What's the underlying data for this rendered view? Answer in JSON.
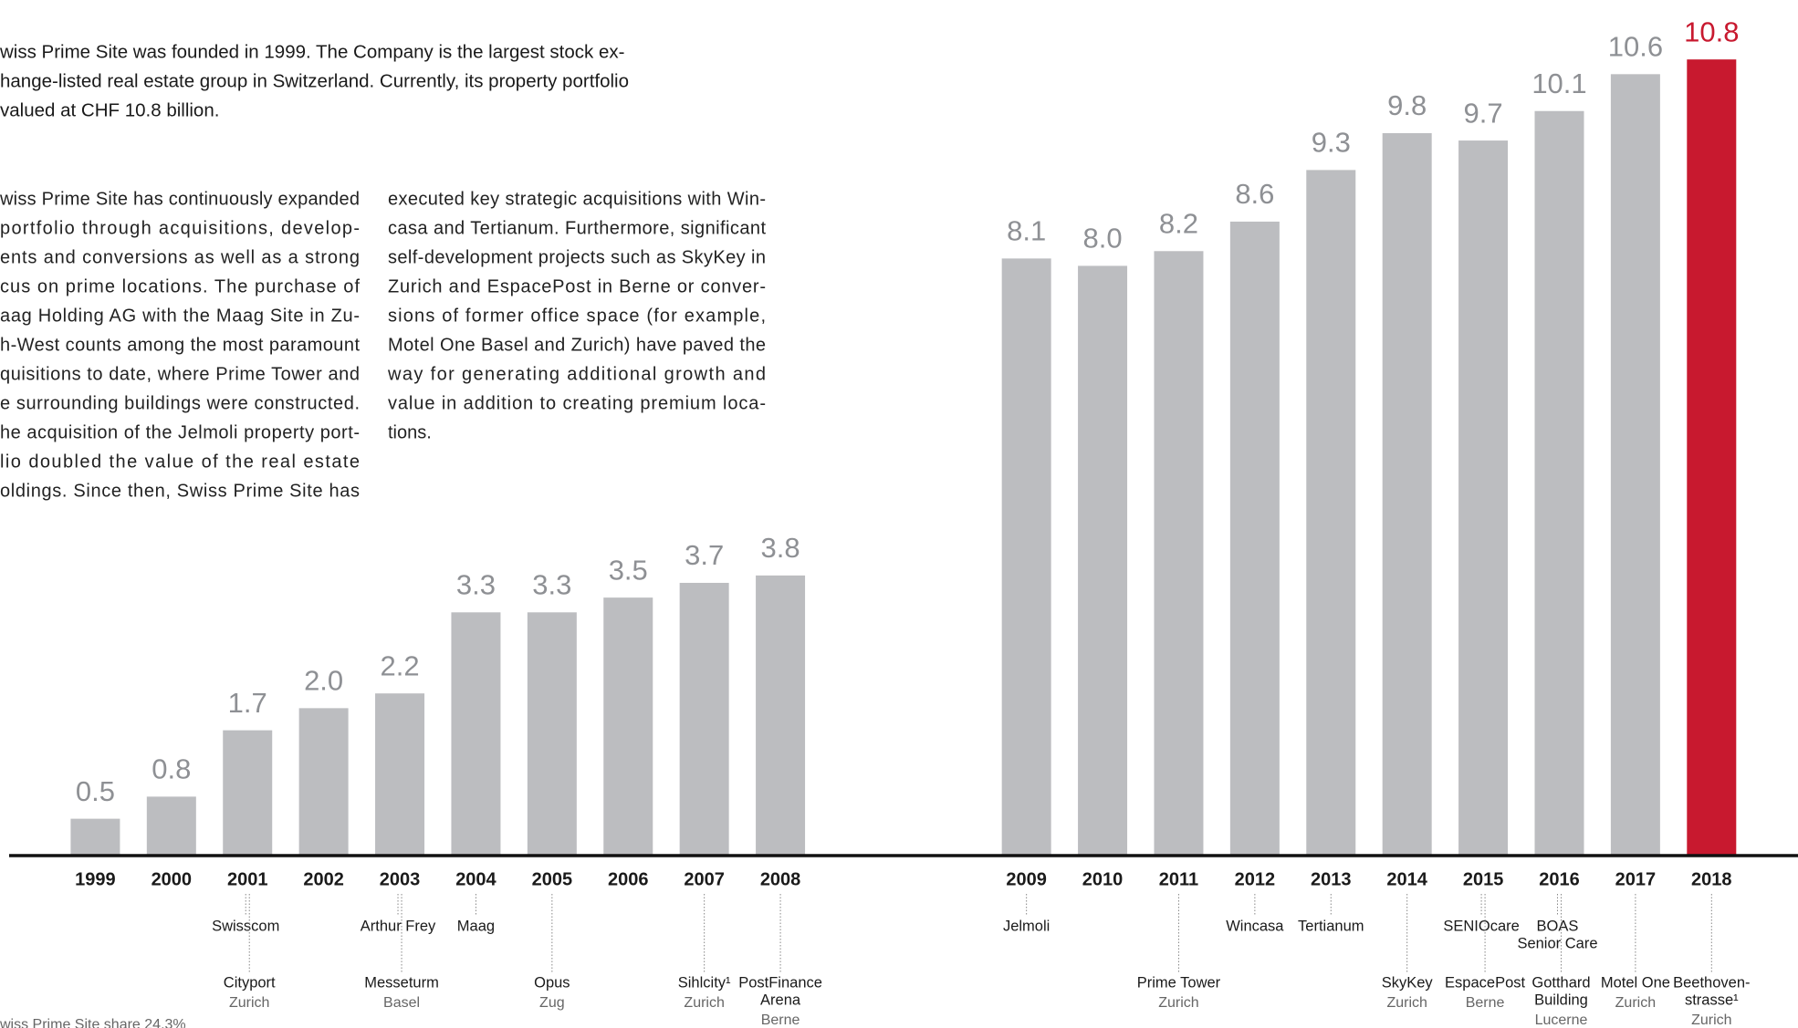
{
  "intro": [
    "wiss Prime Site was founded in 1999. The Company is the largest stock ex-",
    "hange-listed real estate group in Switzerland. Currently, its property portfolio",
    "valued at CHF 10.8 billion."
  ],
  "columns": [
    [
      "wiss Prime Site has continuously expanded",
      "portfolio through acquisitions, develop-",
      "ents and conversions as well as a strong",
      "cus on prime locations. The purchase of",
      "aag Holding AG with the Maag Site in Zu-",
      "h-West counts among the most paramount",
      "quisitions to date, where Prime Tower and",
      "e surrounding buildings were constructed.",
      "he acquisition of the Jelmoli property port-",
      "lio doubled the value of the real estate",
      "oldings. Since then, Swiss Prime Site has"
    ],
    [
      "executed key strategic acquisitions with Win-",
      "casa and Tertianum. Furthermore, significant",
      "self-development projects such as SkyKey in",
      "Zurich and EspacePost in Berne or conver-",
      "sions of former office space (for example,",
      "Motel One Basel and Zurich) have paved the",
      "way for generating additional growth and",
      "value in addition to creating premium loca-",
      "tions."
    ]
  ],
  "footnote": "wiss Prime Site share 24.3%",
  "chart_data": {
    "type": "bar",
    "categories": [
      "1999",
      "2000",
      "2001",
      "2002",
      "2003",
      "2004",
      "2005",
      "2006",
      "2007",
      "2008",
      "2009",
      "2010",
      "2011",
      "2012",
      "2013",
      "2014",
      "2015",
      "2016",
      "2017",
      "2018"
    ],
    "values": [
      0.5,
      0.8,
      1.7,
      2.0,
      2.2,
      3.3,
      3.3,
      3.5,
      3.7,
      3.8,
      8.1,
      8.0,
      8.2,
      8.6,
      9.3,
      9.8,
      9.7,
      10.1,
      10.6,
      10.8
    ],
    "value_labels": [
      "0.5",
      "0.8",
      "1.7",
      "2.0",
      "2.2",
      "3.3",
      "3.3",
      "3.5",
      "3.7",
      "3.8",
      "8.1",
      "8.0",
      "8.2",
      "8.6",
      "9.3",
      "9.8",
      "9.7",
      "10.1",
      "10.6",
      "10.8"
    ],
    "colors": [
      "#bcbdc0",
      "#bcbdc0",
      "#bcbdc0",
      "#bcbdc0",
      "#bcbdc0",
      "#bcbdc0",
      "#bcbdc0",
      "#bcbdc0",
      "#bcbdc0",
      "#bcbdc0",
      "#bcbdc0",
      "#bcbdc0",
      "#bcbdc0",
      "#bcbdc0",
      "#bcbdc0",
      "#bcbdc0",
      "#bcbdc0",
      "#bcbdc0",
      "#bcbdc0",
      "#c8192f"
    ],
    "ylim": [
      0,
      11
    ]
  },
  "acquisitions": [
    {
      "year": "2001",
      "row": 1,
      "name": [
        "Swisscom"
      ]
    },
    {
      "year": "2001",
      "row": 2,
      "name": [
        "Cityport"
      ],
      "place": "Zurich"
    },
    {
      "year": "2003",
      "row": 1,
      "name": [
        "Arthur Frey"
      ]
    },
    {
      "year": "2003",
      "row": 2,
      "name": [
        "Messeturm"
      ],
      "place": "Basel"
    },
    {
      "year": "2004",
      "row": 1,
      "name": [
        "Maag"
      ]
    },
    {
      "year": "2005",
      "row": 2,
      "name": [
        "Opus"
      ],
      "place": "Zug"
    },
    {
      "year": "2007",
      "row": 2,
      "name": [
        "Sihlcity¹"
      ],
      "place": "Zurich"
    },
    {
      "year": "2008",
      "row": 2,
      "name": [
        "PostFinance",
        "Arena"
      ],
      "place": "Berne"
    },
    {
      "year": "2009",
      "row": 1,
      "name": [
        "Jelmoli"
      ]
    },
    {
      "year": "2011",
      "row": 2,
      "name": [
        "Prime Tower"
      ],
      "place": "Zurich"
    },
    {
      "year": "2012",
      "row": 1,
      "name": [
        "Wincasa"
      ]
    },
    {
      "year": "2013",
      "row": 1,
      "name": [
        "Tertianum"
      ]
    },
    {
      "year": "2014",
      "row": 2,
      "name": [
        "SkyKey"
      ],
      "place": "Zurich"
    },
    {
      "year": "2015",
      "row": 1,
      "name": [
        "SENIOcare"
      ]
    },
    {
      "year": "2015",
      "row": 2,
      "name": [
        "EspacePost"
      ],
      "place": "Berne"
    },
    {
      "year": "2016",
      "row": 1,
      "name": [
        "BOAS",
        "Senior Care"
      ]
    },
    {
      "year": "2016",
      "row": 2,
      "name": [
        "Gotthard",
        "Building"
      ],
      "place": "Lucerne"
    },
    {
      "year": "2017",
      "row": 2,
      "name": [
        "Motel One"
      ],
      "place": "Zurich"
    },
    {
      "year": "2018",
      "row": 2,
      "name": [
        "Beethoven-",
        "strasse¹"
      ],
      "place": "Zurich"
    }
  ]
}
